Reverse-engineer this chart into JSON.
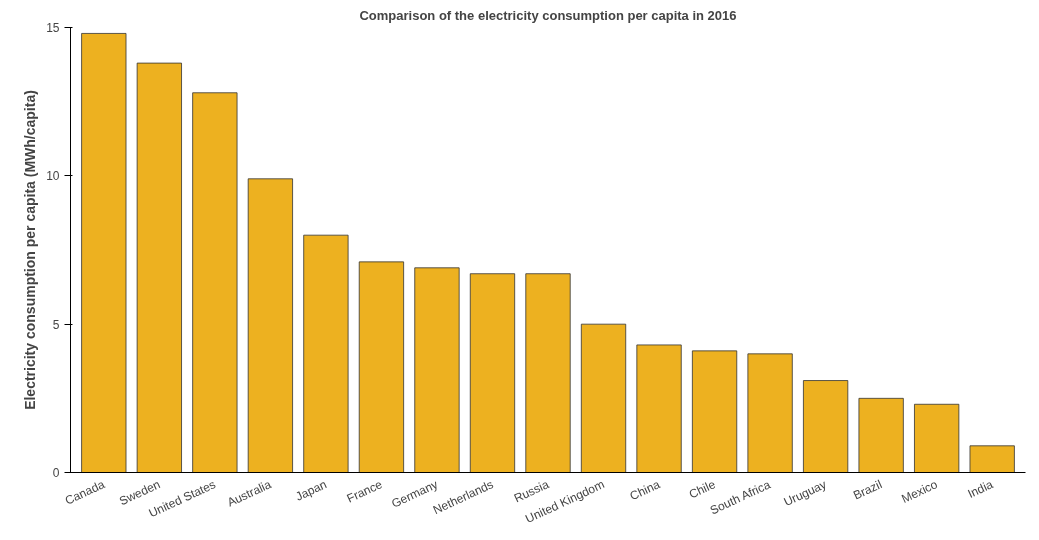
{
  "chart_data": {
    "type": "bar",
    "title": "Comparison of the electricity consumption per capita in 2016",
    "ylabel": "Electricity consumption per capita (MWh/capita)",
    "categories": [
      "Canada",
      "Sweden",
      "United States",
      "Australia",
      "Japan",
      "France",
      "Germany",
      "Netherlands",
      "Russia",
      "United Kingdom",
      "China",
      "Chile",
      "South Africa",
      "Uruguay",
      "Brazil",
      "Mexico",
      "India"
    ],
    "values": [
      14.8,
      13.8,
      12.8,
      9.9,
      8.0,
      7.1,
      6.9,
      6.7,
      6.7,
      5.0,
      4.3,
      4.1,
      4.0,
      3.1,
      2.5,
      2.3,
      0.9
    ],
    "color": "#edb120",
    "ylim": [
      0,
      15
    ],
    "yticks": [
      0,
      5,
      10,
      15
    ],
    "grid": false
  }
}
